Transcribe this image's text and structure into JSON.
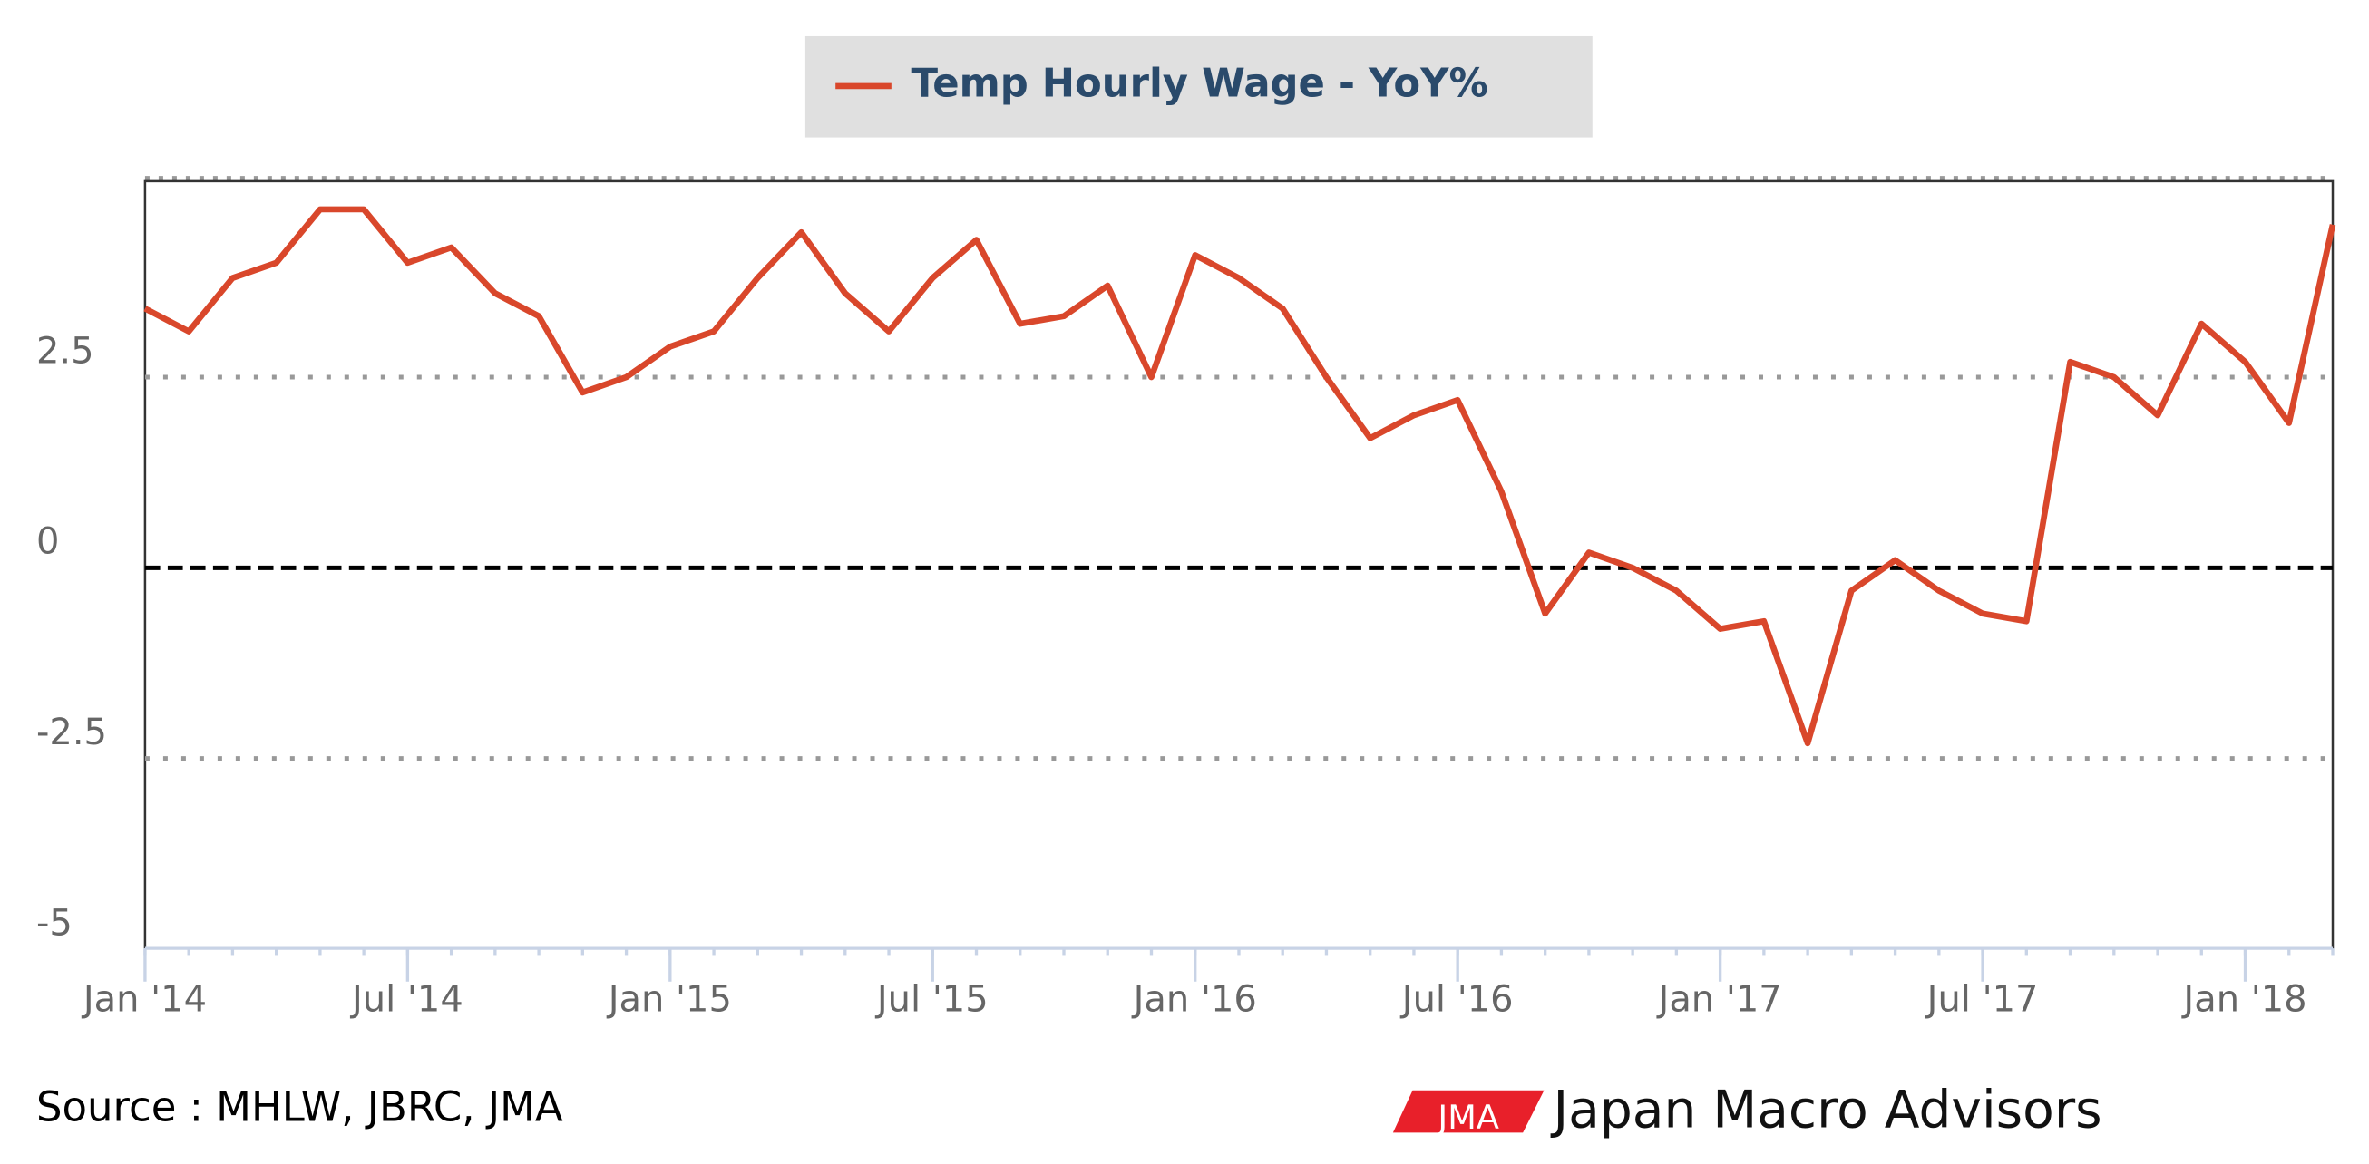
{
  "chart_data": {
    "type": "line",
    "legend_title": "Temp Hourly Wage - YoY%",
    "x": [
      "2014-01",
      "2014-02",
      "2014-03",
      "2014-04",
      "2014-05",
      "2014-06",
      "2014-07",
      "2014-08",
      "2014-09",
      "2014-10",
      "2014-11",
      "2014-12",
      "2015-01",
      "2015-02",
      "2015-03",
      "2015-04",
      "2015-05",
      "2015-06",
      "2015-07",
      "2015-08",
      "2015-09",
      "2015-10",
      "2015-11",
      "2015-12",
      "2016-01",
      "2016-02",
      "2016-03",
      "2016-04",
      "2016-05",
      "2016-06",
      "2016-07",
      "2016-08",
      "2016-09",
      "2016-10",
      "2016-11",
      "2016-12",
      "2017-01",
      "2017-02",
      "2017-03",
      "2017-04",
      "2017-05",
      "2017-06",
      "2017-07",
      "2017-08",
      "2017-09",
      "2017-10",
      "2017-11",
      "2017-12",
      "2018-01",
      "2018-02",
      "2018-03"
    ],
    "series": [
      {
        "name": "Temp Hourly Wage - YoY%",
        "color": "#d9472b",
        "values": [
          3.4,
          3.1,
          3.8,
          4.0,
          4.7,
          4.7,
          4.0,
          4.2,
          3.6,
          3.3,
          2.3,
          2.5,
          2.9,
          3.1,
          3.8,
          4.4,
          3.6,
          3.1,
          3.8,
          4.3,
          3.2,
          3.3,
          3.7,
          2.5,
          4.1,
          3.8,
          3.4,
          2.5,
          1.7,
          2.0,
          2.2,
          1.0,
          -0.6,
          0.2,
          0.0,
          -0.3,
          -0.8,
          -0.7,
          -2.3,
          -0.3,
          0.1,
          -0.3,
          -0.6,
          -0.7,
          2.7,
          2.5,
          2.0,
          3.2,
          2.7,
          1.9,
          4.5
        ]
      }
    ],
    "xlim": [
      "2014-01",
      "2018-03"
    ],
    "xticks": [
      {
        "value": "2014-01",
        "label": "Jan '14"
      },
      {
        "value": "2014-07",
        "label": "Jul '14"
      },
      {
        "value": "2015-01",
        "label": "Jan '15"
      },
      {
        "value": "2015-07",
        "label": "Jul '15"
      },
      {
        "value": "2016-01",
        "label": "Jan '16"
      },
      {
        "value": "2016-07",
        "label": "Jul '16"
      },
      {
        "value": "2017-01",
        "label": "Jan '17"
      },
      {
        "value": "2017-07",
        "label": "Jul '17"
      },
      {
        "value": "2018-01",
        "label": "Jan '18"
      }
    ],
    "ylim": [
      -5,
      5
    ],
    "yticks": [
      -5,
      -2.5,
      0,
      2.5
    ],
    "grid": true,
    "source": "Source : MHLW, JBRC, JMA"
  },
  "logo": {
    "badge": "JMA",
    "name": "Japan Macro Advisors"
  }
}
